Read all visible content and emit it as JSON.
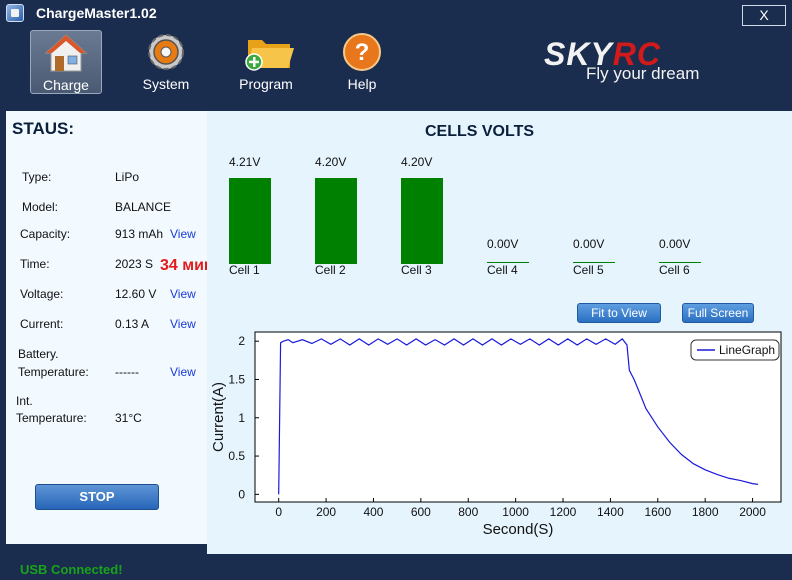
{
  "window": {
    "title": "ChargeMaster1.02",
    "close_label": "X"
  },
  "toolbar": {
    "items": [
      {
        "label": "Charge",
        "icon": "house-icon"
      },
      {
        "label": "System",
        "icon": "gear-icon"
      },
      {
        "label": "Program",
        "icon": "folder-add-icon"
      },
      {
        "label": "Help",
        "icon": "help-icon"
      }
    ]
  },
  "brand": {
    "name_a": "SKY",
    "name_b": "RC",
    "tagline": "Fly your dream"
  },
  "status": {
    "title": "STAUS:",
    "rows": [
      {
        "label": "Type:",
        "value": "LiPo",
        "view": ""
      },
      {
        "label": "Model:",
        "value": "BALANCE",
        "view": ""
      },
      {
        "label": "Capacity:",
        "value": "913 mAh",
        "view": "View"
      },
      {
        "label": "Time:",
        "value": "2023 S",
        "view": ""
      },
      {
        "label": "Voltage:",
        "value": "12.60 V",
        "view": "View"
      },
      {
        "label": "Current:",
        "value": "0.13 A",
        "view": "View"
      },
      {
        "label_line1": "Battery.",
        "label_line2": "Temperature:",
        "value": "------",
        "view": "View"
      },
      {
        "label_line1": "Int.",
        "label_line2": "Temperature:",
        "value": "31°C",
        "view": ""
      }
    ],
    "note": "34 мин",
    "stop_label": "STOP"
  },
  "cells": {
    "title": "CELLS VOLTS",
    "items": [
      {
        "name": "Cell 1",
        "voltage": "4.21V",
        "value": 4.21
      },
      {
        "name": "Cell 2",
        "voltage": "4.20V",
        "value": 4.2
      },
      {
        "name": "Cell 3",
        "voltage": "4.20V",
        "value": 4.2
      },
      {
        "name": "Cell 4",
        "voltage": "0.00V",
        "value": 0
      },
      {
        "name": "Cell 5",
        "voltage": "0.00V",
        "value": 0
      },
      {
        "name": "Cell 6",
        "voltage": "0.00V",
        "value": 0
      }
    ],
    "fit_label": "Fit to View",
    "fullscreen_label": "Full Screen"
  },
  "chart_data": {
    "type": "line",
    "xlabel": "Second(S)",
    "ylabel": "Current(A)",
    "xlim": [
      -100,
      2120
    ],
    "ylim": [
      -0.1,
      2.12
    ],
    "xticks": [
      0,
      200,
      400,
      600,
      800,
      1000,
      1200,
      1400,
      1600,
      1800,
      2000
    ],
    "yticks": [
      0,
      0.5,
      1,
      1.5,
      2
    ],
    "ytick_labels": [
      "0",
      "0.5",
      "1",
      "1.5",
      "2"
    ],
    "legend": "top-right",
    "series": [
      {
        "name": "LineGraph",
        "color": "#1a1adb",
        "x": [
          0,
          8,
          20,
          40,
          60,
          100,
          140,
          180,
          220,
          260,
          300,
          340,
          380,
          420,
          460,
          500,
          540,
          580,
          620,
          660,
          700,
          740,
          780,
          820,
          860,
          900,
          940,
          980,
          1020,
          1060,
          1100,
          1140,
          1180,
          1220,
          1260,
          1300,
          1340,
          1380,
          1420,
          1450,
          1470,
          1480,
          1500,
          1520,
          1550,
          1600,
          1650,
          1700,
          1750,
          1800,
          1850,
          1900,
          1950,
          2000,
          2023
        ],
        "y": [
          0,
          1.98,
          2.0,
          2.02,
          1.98,
          2.02,
          1.97,
          2.03,
          1.96,
          2.03,
          1.95,
          2.03,
          1.95,
          2.03,
          1.96,
          2.03,
          1.95,
          2.03,
          1.95,
          2.02,
          1.95,
          2.03,
          1.95,
          2.03,
          1.95,
          2.03,
          1.95,
          2.03,
          1.96,
          2.03,
          1.95,
          2.03,
          1.95,
          2.03,
          1.95,
          2.03,
          1.96,
          2.03,
          1.96,
          2.03,
          1.95,
          1.62,
          1.5,
          1.35,
          1.12,
          0.88,
          0.68,
          0.52,
          0.4,
          0.32,
          0.26,
          0.21,
          0.18,
          0.14,
          0.13
        ]
      }
    ]
  },
  "statusbar": {
    "text": "USB  Connected!"
  },
  "colors": {
    "background": "#1b2d4f",
    "panel": "#f2f9ff",
    "main": "#e6f4fd",
    "cell_bar": "#008000",
    "link": "#1a3bd6",
    "usb": "#19a31a"
  }
}
